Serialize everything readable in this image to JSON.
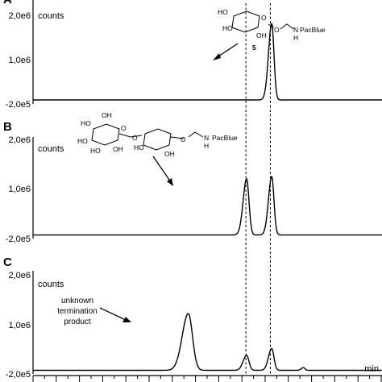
{
  "chart_data": {
    "type": "line",
    "x_axis_label": "min",
    "dashed_guides": [
      0.61,
      0.68
    ],
    "panels": [
      {
        "id": "A",
        "letter": "A",
        "y_unit_label": "counts",
        "ylim": [
          -200000,
          2000000
        ],
        "y_ticks": [
          {
            "value": 2000000,
            "label": "2,0e6"
          },
          {
            "value": 1000000,
            "label": "1,0e6"
          },
          {
            "value": -200000,
            "label": "-2,0e5"
          }
        ],
        "baseline": -120000,
        "peaks": [
          {
            "x": 0.684,
            "height": 1900000,
            "width": 0.0075
          }
        ],
        "annotations": [
          {
            "text": "5",
            "role": "compound-number"
          }
        ],
        "structure_labels": [
          "HO",
          "HO",
          "OH",
          "O",
          "O",
          "N",
          "H",
          "PacBlue"
        ]
      },
      {
        "id": "B",
        "letter": "B",
        "y_unit_label": "counts",
        "ylim": [
          -200000,
          2000000
        ],
        "y_ticks": [
          {
            "value": 2000000,
            "label": "2,0e6"
          },
          {
            "value": 1000000,
            "label": "1,0e6"
          },
          {
            "value": -200000,
            "label": "-2,0e5"
          }
        ],
        "baseline": -120000,
        "peaks": [
          {
            "x": 0.612,
            "height": 1250000,
            "width": 0.008
          },
          {
            "x": 0.684,
            "height": 1300000,
            "width": 0.0075
          }
        ],
        "annotations": [],
        "structure_labels": [
          "HO",
          "OH",
          "HO",
          "O",
          "O",
          "HO",
          "OH",
          "HO",
          "OH",
          "O",
          "N",
          "H",
          "PacBlue"
        ]
      },
      {
        "id": "C",
        "letter": "C",
        "y_unit_label": "counts",
        "ylim": [
          -200000,
          2000000
        ],
        "y_ticks": [
          {
            "value": 2000000,
            "label": "2,0e6"
          },
          {
            "value": 1000000,
            "label": "1,0e6"
          },
          {
            "value": -200000,
            "label": "-2,0e5"
          }
        ],
        "baseline": -120000,
        "peaks": [
          {
            "x": 0.445,
            "height": 1250000,
            "width": 0.014
          },
          {
            "x": 0.612,
            "height": 330000,
            "width": 0.008
          },
          {
            "x": 0.684,
            "height": 480000,
            "width": 0.0075
          },
          {
            "x": 0.775,
            "height": 60000,
            "width": 0.005
          }
        ],
        "annotations": [
          {
            "text": "unknown termination product",
            "lines": [
              "unknown",
              "termination",
              "product"
            ]
          }
        ],
        "structure_labels": []
      }
    ]
  }
}
